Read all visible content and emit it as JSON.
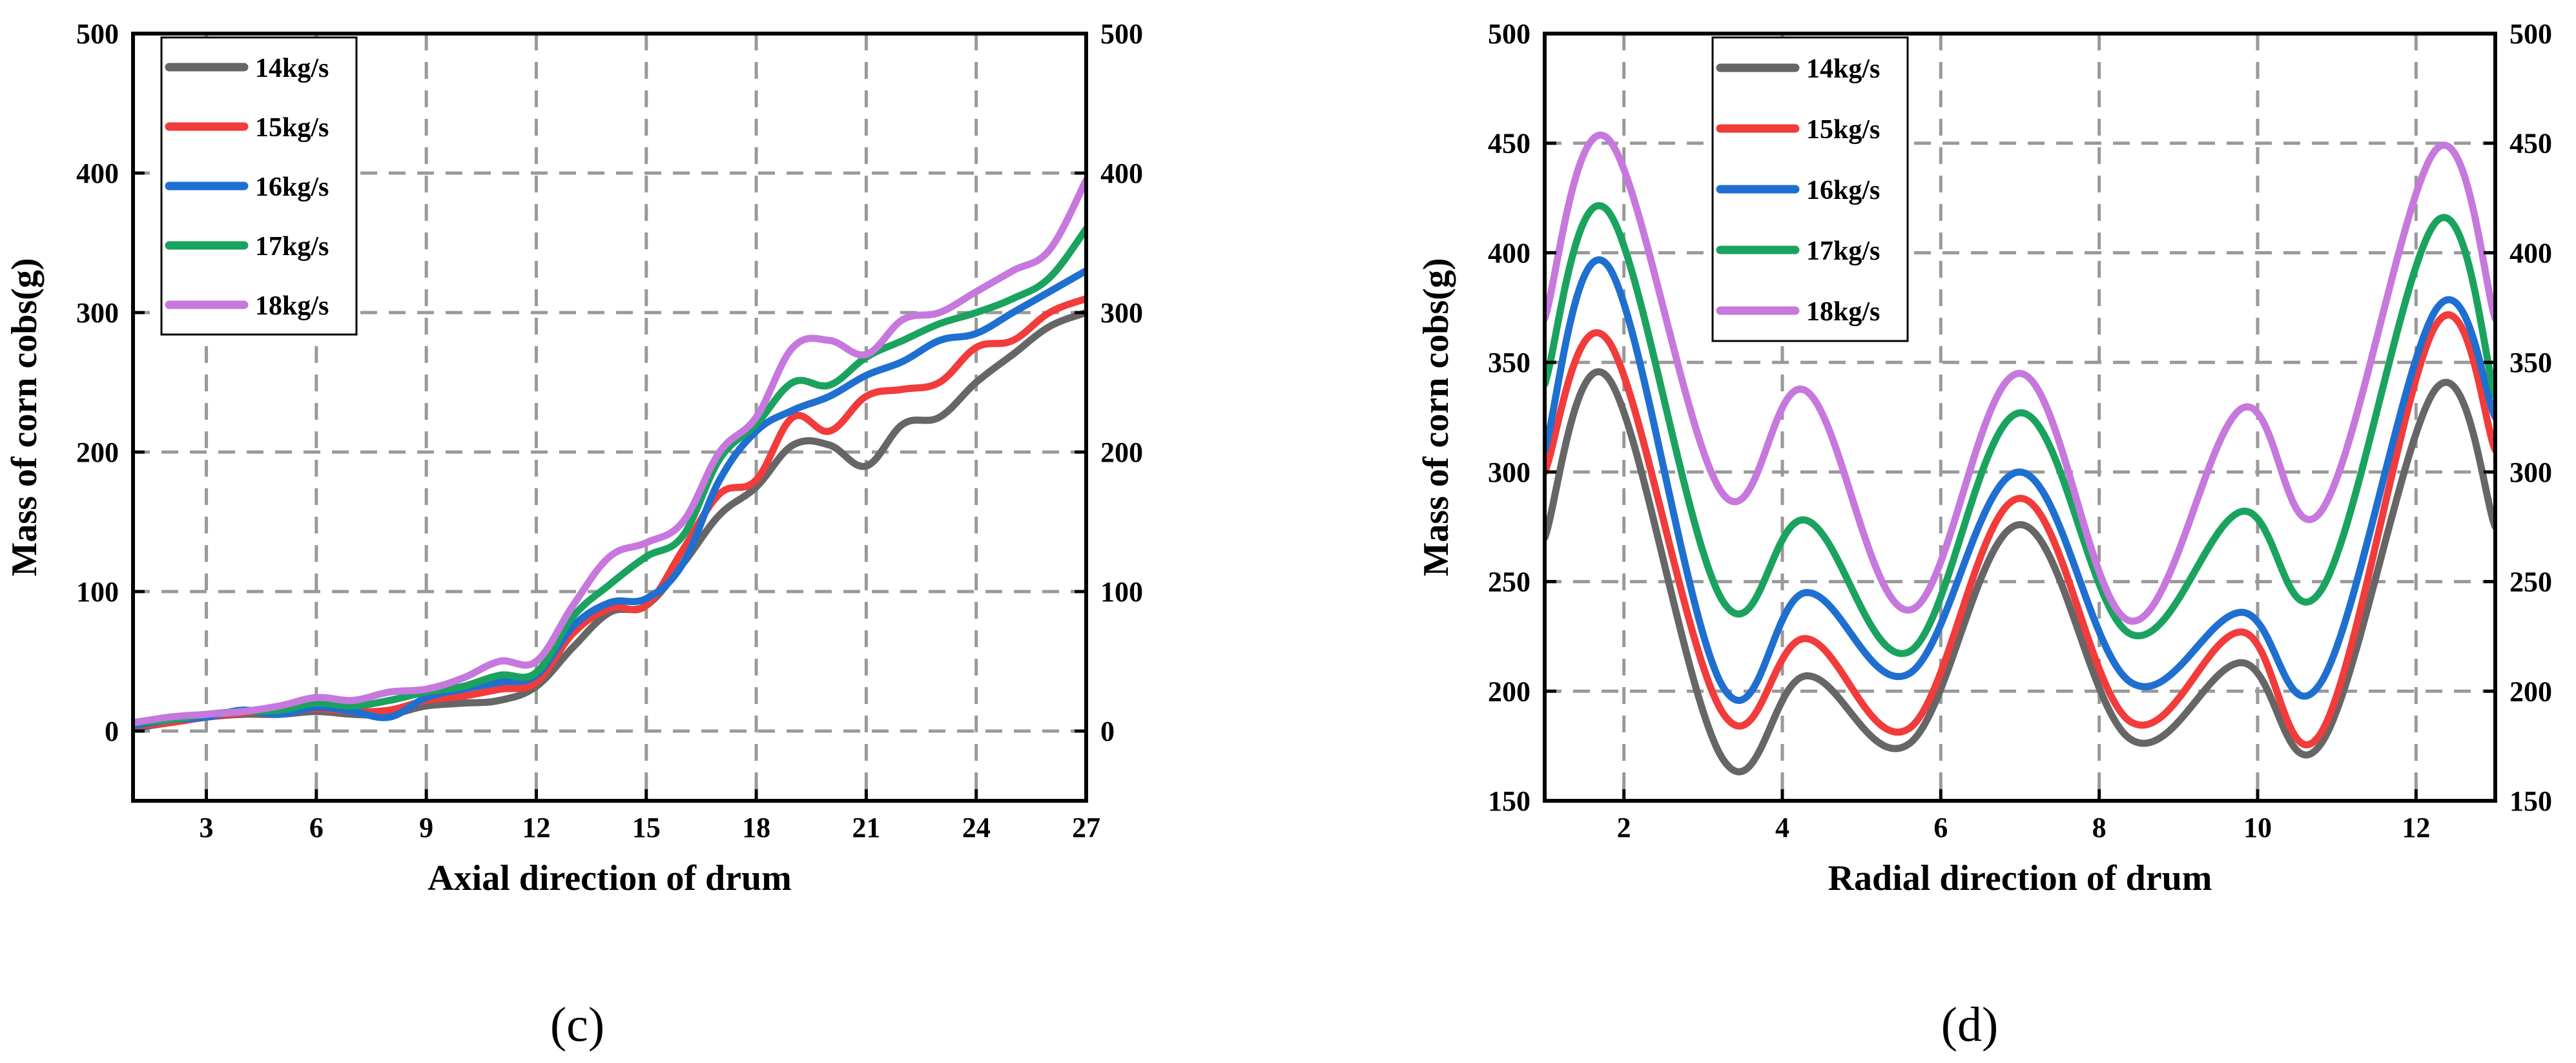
{
  "chart_data": [
    {
      "type": "line",
      "panel_label": "(c)",
      "xlabel": "Axial direction of drum",
      "ylabel": "Mass of corn cobs(g)",
      "xlim": [
        1,
        27
      ],
      "ylim": [
        -50,
        500
      ],
      "x_ticks": [
        3,
        6,
        9,
        12,
        15,
        18,
        21,
        24,
        27
      ],
      "y_ticks": [
        0,
        100,
        200,
        300,
        400,
        500
      ],
      "right_y_ticks": [
        0,
        100,
        200,
        300,
        400,
        500
      ],
      "grid": true,
      "legend_position": "top-left",
      "x": [
        1,
        2,
        3,
        4,
        5,
        6,
        7,
        8,
        9,
        10,
        11,
        12,
        13,
        14,
        15,
        16,
        17,
        18,
        19,
        20,
        21,
        22,
        23,
        24,
        25,
        26,
        27
      ],
      "series": [
        {
          "name": "14kg/s",
          "color": "#666666",
          "values": [
            2,
            6,
            10,
            12,
            12,
            14,
            12,
            12,
            18,
            20,
            22,
            32,
            60,
            85,
            90,
            120,
            155,
            175,
            205,
            205,
            190,
            220,
            225,
            250,
            270,
            290,
            300
          ]
        },
        {
          "name": "15kg/s",
          "color": "#f23b3b",
          "values": [
            4,
            6,
            10,
            13,
            14,
            16,
            14,
            15,
            22,
            25,
            30,
            35,
            70,
            88,
            90,
            130,
            170,
            180,
            225,
            215,
            240,
            245,
            250,
            275,
            280,
            300,
            310
          ]
        },
        {
          "name": "16kg/s",
          "color": "#1f6fd1",
          "values": [
            4,
            8,
            10,
            15,
            12,
            17,
            14,
            10,
            24,
            30,
            35,
            40,
            75,
            92,
            95,
            120,
            180,
            215,
            230,
            240,
            255,
            265,
            280,
            285,
            300,
            315,
            330
          ]
        },
        {
          "name": "17kg/s",
          "color": "#1aa35f",
          "values": [
            6,
            8,
            12,
            14,
            15,
            20,
            18,
            22,
            28,
            32,
            40,
            42,
            82,
            105,
            125,
            140,
            195,
            220,
            250,
            248,
            268,
            280,
            292,
            300,
            310,
            325,
            360
          ]
        },
        {
          "name": "18kg/s",
          "color": "#c678dd",
          "values": [
            6,
            10,
            12,
            14,
            18,
            24,
            22,
            28,
            30,
            38,
            50,
            50,
            90,
            125,
            135,
            150,
            200,
            225,
            275,
            280,
            270,
            295,
            300,
            315,
            330,
            345,
            395
          ]
        }
      ]
    },
    {
      "type": "line",
      "panel_label": "(d)",
      "xlabel": "Radial direction of drum",
      "ylabel": "Mass of corn cobs(g)",
      "xlim": [
        1,
        13
      ],
      "ylim": [
        150,
        500
      ],
      "x_ticks": [
        2,
        4,
        6,
        8,
        10,
        12
      ],
      "y_ticks": [
        150,
        200,
        250,
        300,
        350,
        400,
        450,
        500
      ],
      "right_y_ticks": [
        150,
        200,
        250,
        300,
        350,
        400,
        450,
        500
      ],
      "grid": true,
      "legend_position": "top-left",
      "x": [
        1,
        1.8,
        3.25,
        4.3,
        5.6,
        7,
        8.4,
        9.8,
        10.8,
        12.25,
        13
      ],
      "series": [
        {
          "name": "14kg/s",
          "color": "#666666",
          "values": [
            270,
            343,
            169,
            207,
            176,
            276,
            178,
            213,
            176,
            338,
            275
          ]
        },
        {
          "name": "15kg/s",
          "color": "#f23b3b",
          "values": [
            300,
            360,
            190,
            224,
            183,
            288,
            186,
            227,
            181,
            367,
            310
          ]
        },
        {
          "name": "16kg/s",
          "color": "#1f6fd1",
          "values": [
            310,
            394,
            202,
            245,
            208,
            300,
            204,
            236,
            204,
            374,
            325
          ]
        },
        {
          "name": "17kg/s",
          "color": "#1aa35f",
          "values": [
            340,
            419,
            241,
            278,
            218,
            327,
            226,
            282,
            246,
            414,
            335
          ]
        },
        {
          "name": "18kg/s",
          "color": "#c678dd",
          "values": [
            370,
            452,
            290,
            337,
            237,
            345,
            232,
            329,
            282,
            447,
            370
          ]
        }
      ]
    }
  ]
}
